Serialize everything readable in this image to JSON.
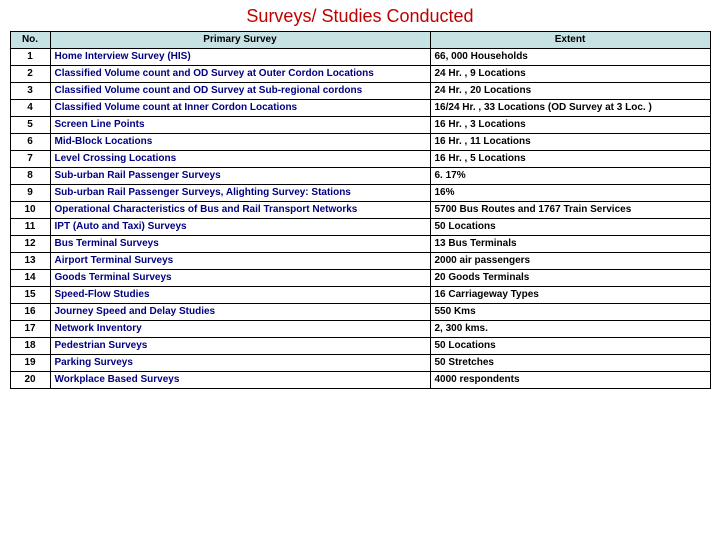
{
  "title": "Surveys/ Studies Conducted",
  "columns": [
    "No.",
    "Primary Survey",
    "Extent"
  ],
  "header_bg": "#c6e2e2",
  "title_color": "#c00000",
  "survey_text_color": "#000080",
  "rows": [
    {
      "no": "1",
      "survey": "Home Interview Survey (HIS)",
      "extent": "66, 000 Households"
    },
    {
      "no": "2",
      "survey": "Classified Volume count and OD Survey at Outer Cordon Locations",
      "extent": "24 Hr. , 9 Locations"
    },
    {
      "no": "3",
      "survey": "Classified Volume count and OD Survey at Sub-regional cordons",
      "extent": "24 Hr. , 20 Locations"
    },
    {
      "no": "4",
      "survey": "Classified Volume count at Inner Cordon Locations",
      "extent": "16/24 Hr. , 33 Locations (OD Survey at 3 Loc. )"
    },
    {
      "no": "5",
      "survey": "Screen Line Points",
      "extent": "16 Hr. , 3 Locations"
    },
    {
      "no": "6",
      "survey": "Mid-Block Locations",
      "extent": "16 Hr. , 11 Locations"
    },
    {
      "no": "7",
      "survey": "Level Crossing Locations",
      "extent": "16 Hr. , 5 Locations"
    },
    {
      "no": "8",
      "survey": "Sub-urban Rail Passenger Surveys",
      "extent": "6. 17%"
    },
    {
      "no": "9",
      "survey": "Sub-urban Rail Passenger Surveys, Alighting Survey: Stations",
      "extent": "16%"
    },
    {
      "no": "10",
      "survey": "Operational Characteristics of Bus and Rail Transport Networks",
      "extent": "5700 Bus Routes and 1767 Train Services"
    },
    {
      "no": "11",
      "survey": "IPT (Auto and Taxi) Surveys",
      "extent": "50 Locations"
    },
    {
      "no": "12",
      "survey": "Bus Terminal Surveys",
      "extent": "13 Bus Terminals"
    },
    {
      "no": "13",
      "survey": "Airport Terminal Surveys",
      "extent": "2000 air passengers"
    },
    {
      "no": "14",
      "survey": "Goods Terminal Surveys",
      "extent": "20 Goods Terminals"
    },
    {
      "no": "15",
      "survey": "Speed-Flow Studies",
      "extent": "16 Carriageway Types"
    },
    {
      "no": "16",
      "survey": "Journey Speed and Delay Studies",
      "extent": "550 Kms"
    },
    {
      "no": "17",
      "survey": "Network Inventory",
      "extent": "2, 300 kms."
    },
    {
      "no": "18",
      "survey": "Pedestrian Surveys",
      "extent": "50 Locations"
    },
    {
      "no": "19",
      "survey": "Parking Surveys",
      "extent": "50 Stretches"
    },
    {
      "no": "20",
      "survey": "Workplace Based Surveys",
      "extent": "4000 respondents"
    }
  ]
}
